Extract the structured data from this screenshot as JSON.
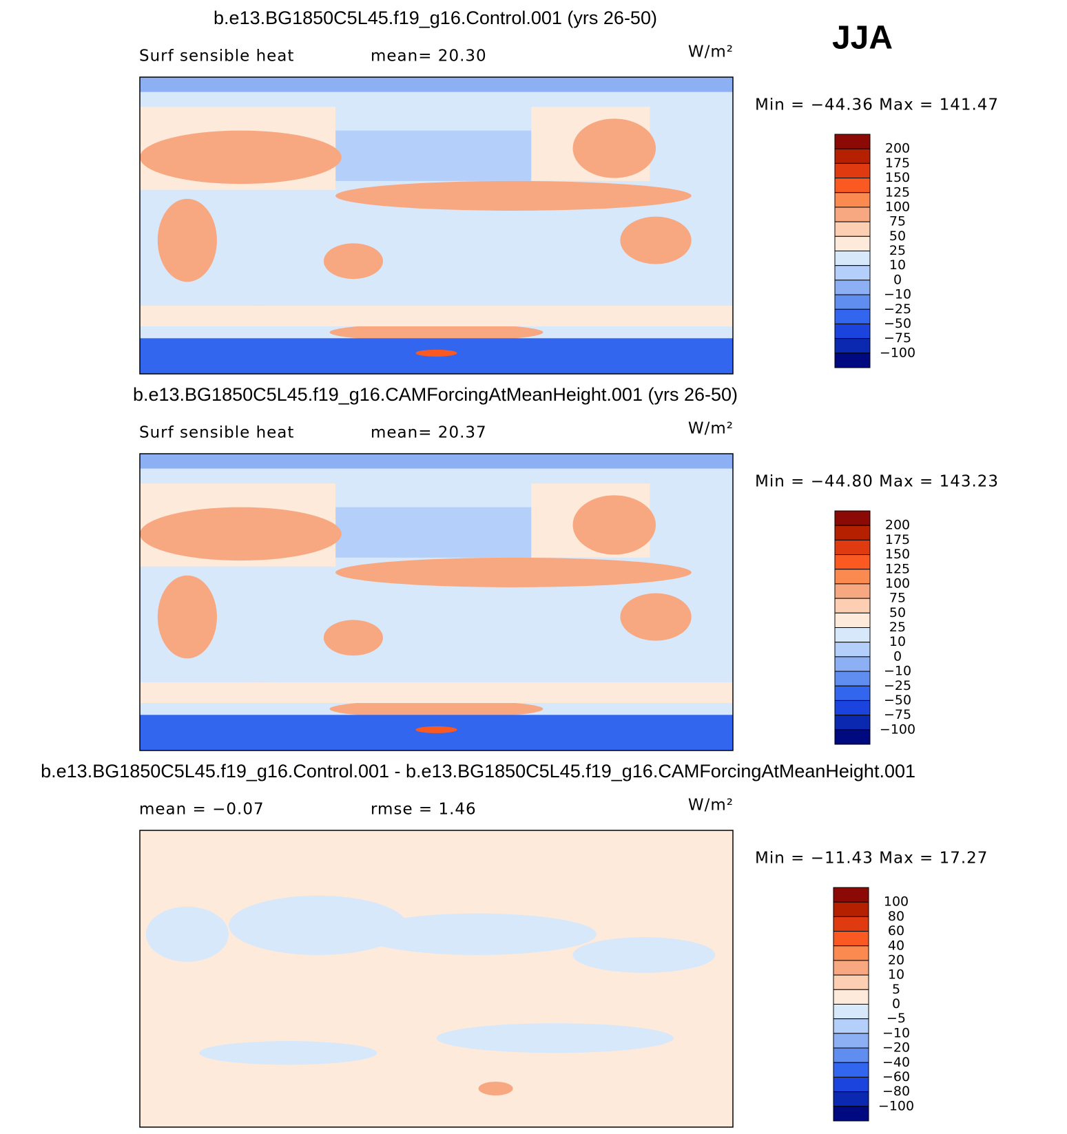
{
  "header": {
    "season": "JJA"
  },
  "panels": [
    {
      "title": "b.e13.BG1850C5L45.f19_g16.Control.001 (yrs 26-50)",
      "left_label": "Surf  sensible  heat",
      "right_label": "mean=   20.30",
      "units": "W/m²",
      "min_max": "Min  =  −44.36  Max  =  141.47",
      "colorbar": {
        "colors": [
          "#8b0a05",
          "#b52000",
          "#e03a10",
          "#fa5a22",
          "#fb8a50",
          "#f8a880",
          "#fccfb3",
          "#fdeadb",
          "#d7e8fb",
          "#b3cffa",
          "#8db0f5",
          "#5f8ef0",
          "#3366ee",
          "#1a44dd",
          "#0a28b0",
          "#000a80"
        ],
        "labels": [
          "200",
          "175",
          "150",
          "125",
          "100",
          "75",
          "50",
          "25",
          "10",
          "0",
          "−10",
          "−25",
          "−50",
          "−75",
          "−100"
        ]
      }
    },
    {
      "title": "b.e13.BG1850C5L45.f19_g16.CAMForcingAtMeanHeight.001 (yrs 26-50)",
      "left_label": "Surf  sensible  heat",
      "right_label": "mean=   20.37",
      "units": "W/m²",
      "min_max": "Min  =  −44.80  Max  =  143.23",
      "colorbar": {
        "colors": [
          "#8b0a05",
          "#b52000",
          "#e03a10",
          "#fa5a22",
          "#fb8a50",
          "#f8a880",
          "#fccfb3",
          "#fdeadb",
          "#d7e8fb",
          "#b3cffa",
          "#8db0f5",
          "#5f8ef0",
          "#3366ee",
          "#1a44dd",
          "#0a28b0",
          "#000a80"
        ],
        "labels": [
          "200",
          "175",
          "150",
          "125",
          "100",
          "75",
          "50",
          "25",
          "10",
          "0",
          "−10",
          "−25",
          "−50",
          "−75",
          "−100"
        ]
      }
    },
    {
      "title": "b.e13.BG1850C5L45.f19_g16.Control.001 - b.e13.BG1850C5L45.f19_g16.CAMForcingAtMeanHeight.001",
      "left_label": "mean  =    −0.07",
      "right_label": "rmse  =     1.46",
      "units": "W/m²",
      "min_max": "Min  =  −11.43  Max  =    17.27",
      "colorbar": {
        "colors": [
          "#8b0a05",
          "#b52000",
          "#e03a10",
          "#fa5a22",
          "#fb8a50",
          "#f8a880",
          "#fccfb3",
          "#fdeadb",
          "#d7e8fb",
          "#b3cffa",
          "#8db0f5",
          "#5f8ef0",
          "#3366ee",
          "#1a44dd",
          "#0a28b0",
          "#000a80"
        ],
        "labels": [
          "100",
          "80",
          "60",
          "40",
          "20",
          "10",
          "5",
          "0",
          "−5",
          "−10",
          "−20",
          "−40",
          "−60",
          "−80",
          "−100"
        ]
      }
    }
  ]
}
